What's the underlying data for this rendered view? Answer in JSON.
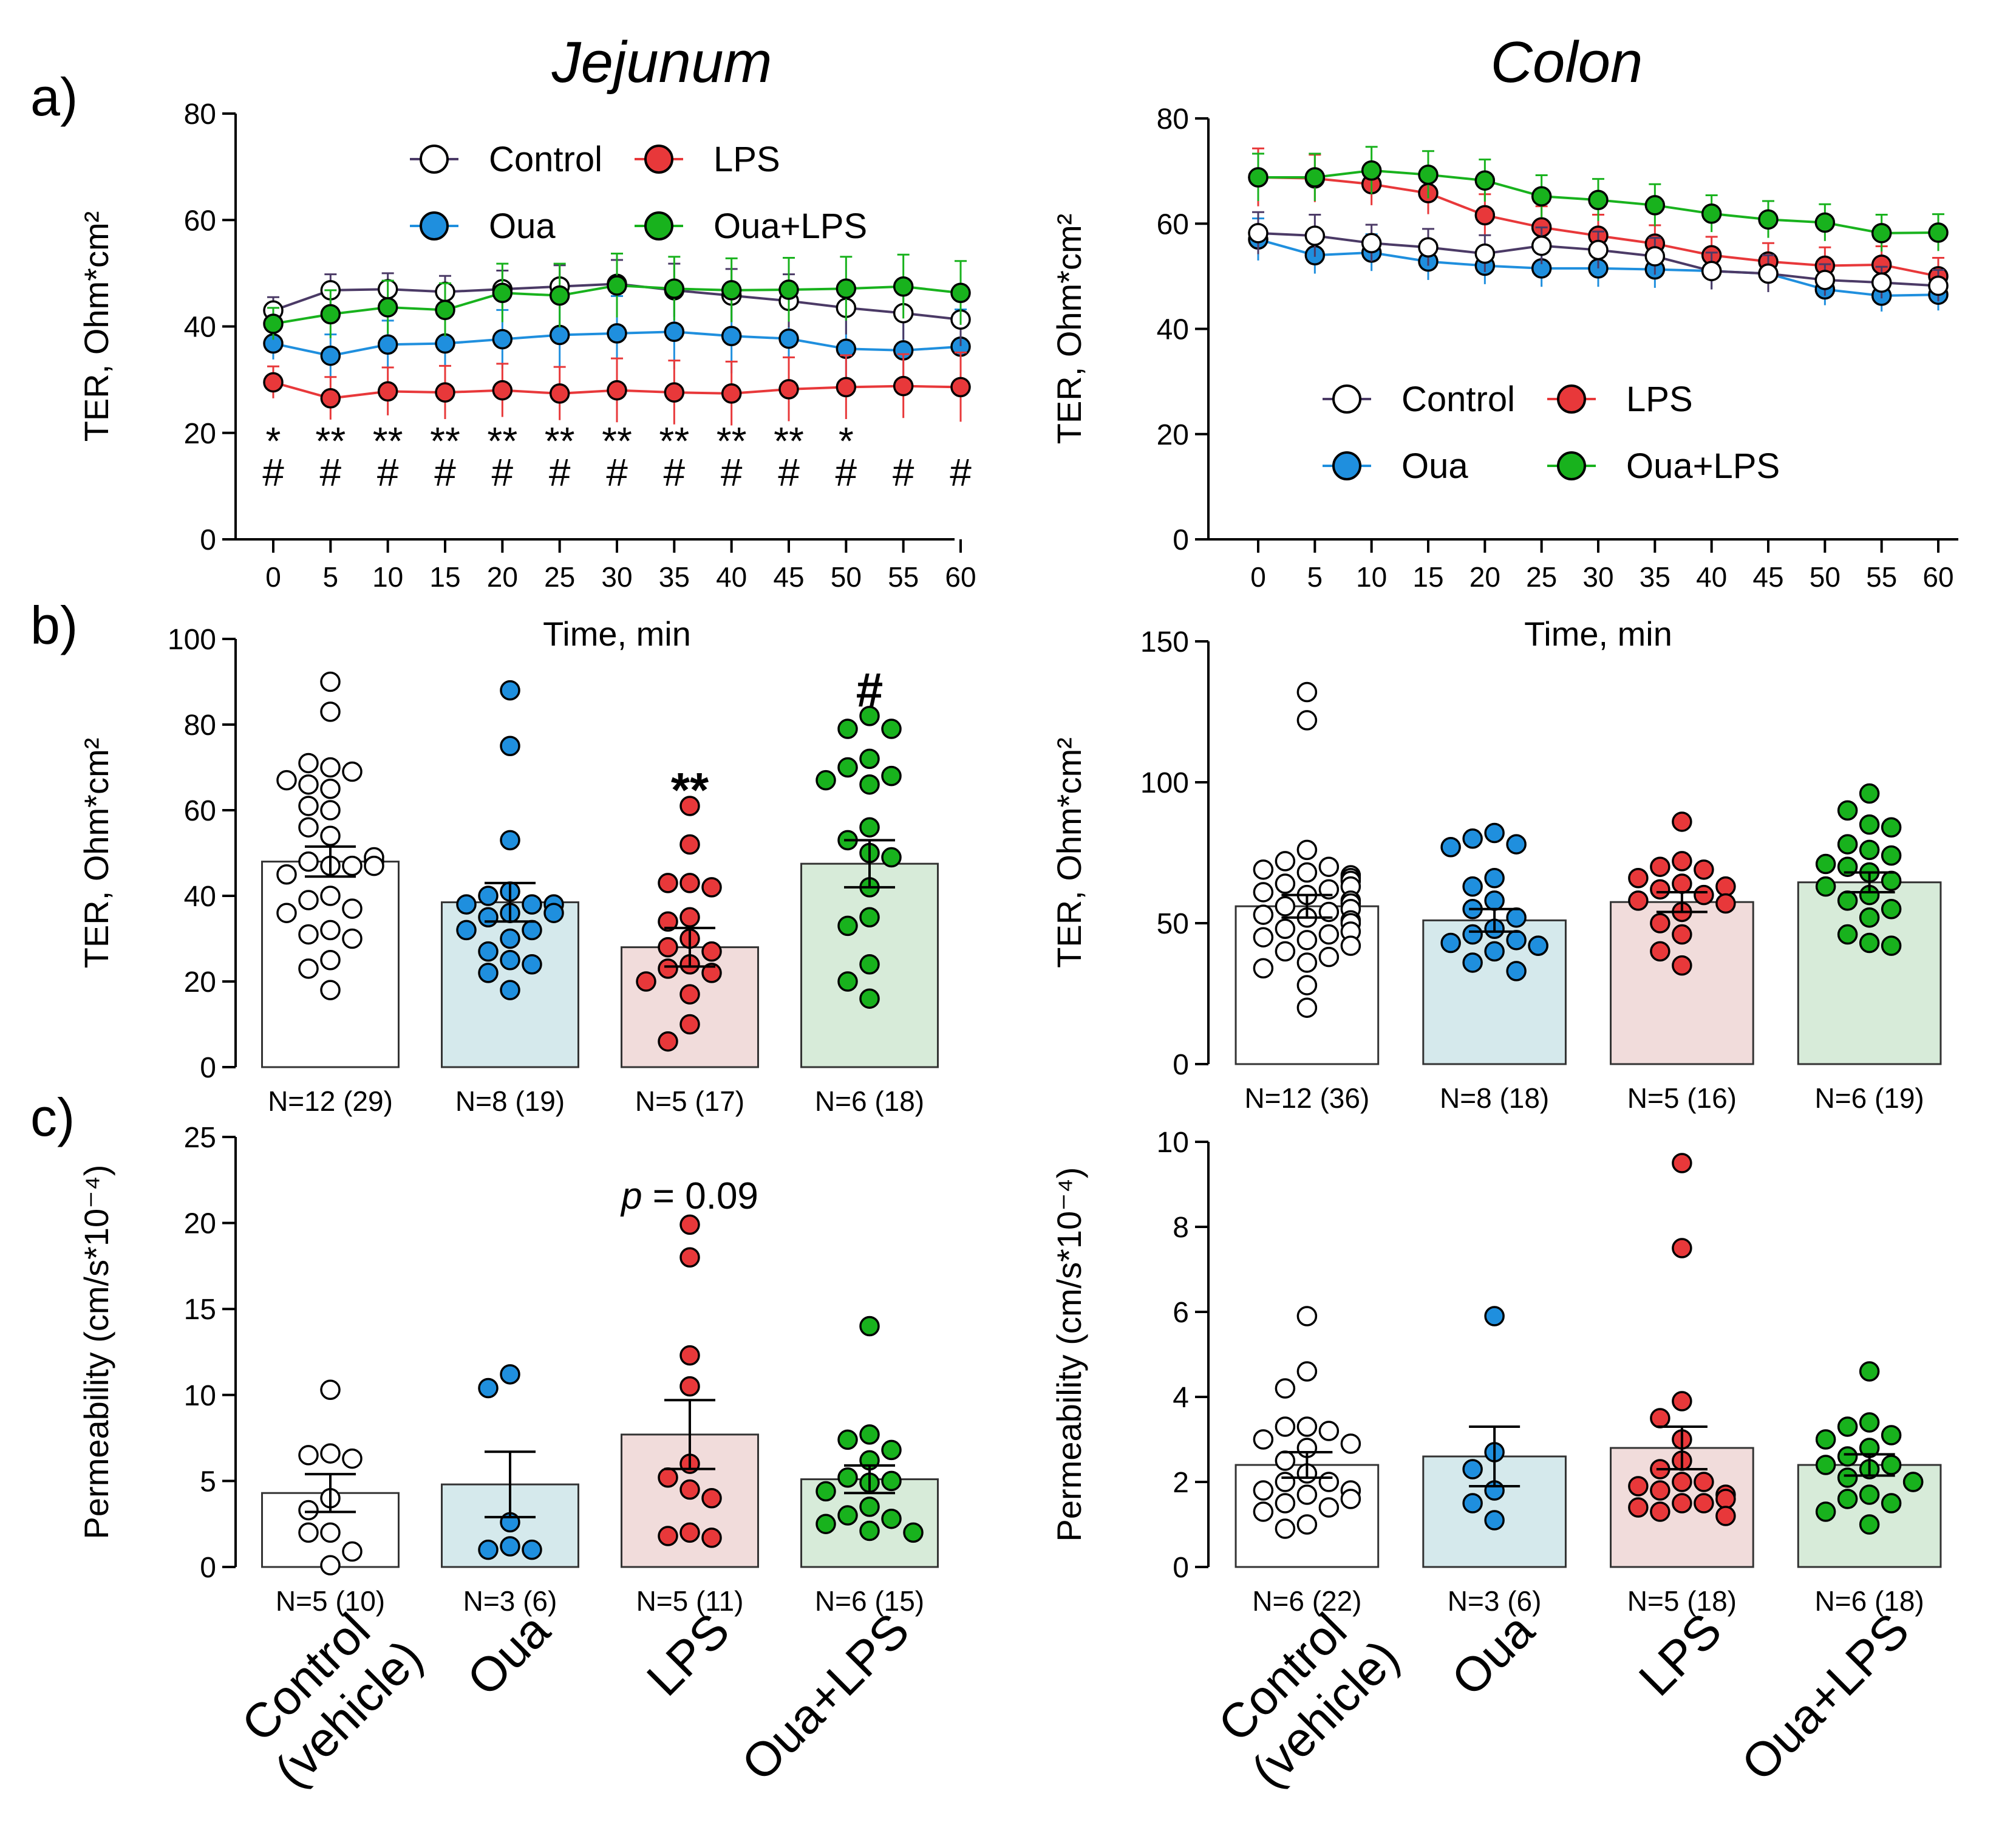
{
  "figure": {
    "titles": {
      "jejunum": "Jejunum",
      "colon": "Colon"
    },
    "panel_labels": [
      "a)",
      "b)",
      "c)"
    ],
    "colors": {
      "control": "#ffffff",
      "oua": "#1f8fde",
      "lps": "#e8383a",
      "oua_lps": "#18b21d",
      "control_line": "#4b3a66",
      "bar_control": "#ffffff",
      "bar_oua": "#d5e9ec",
      "bar_lps": "#f1dcdb",
      "bar_oua_lps": "#d7ebd9"
    }
  },
  "chart_data": [
    {
      "id": "a_jejunum",
      "type": "line",
      "title": "Jejunum",
      "xlabel": "Time, min",
      "ylabel": "TER, Ohm*cm²",
      "xlim": [
        0,
        60
      ],
      "ylim": [
        0,
        80
      ],
      "x": [
        0,
        5,
        10,
        15,
        20,
        25,
        30,
        35,
        40,
        45,
        50,
        55,
        60
      ],
      "xticks": [
        "0",
        "5",
        "10",
        "15",
        "20",
        "25",
        "30",
        "35",
        "40",
        "45",
        "50",
        "55",
        "60"
      ],
      "yticks": [
        "0",
        "20",
        "40",
        "60",
        "80"
      ],
      "legend": [
        "Control",
        "LPS",
        "Oua",
        "Oua+LPS"
      ],
      "series": [
        {
          "name": "Control",
          "values": [
            43,
            46.8,
            47,
            46.5,
            47,
            47.5,
            48,
            46.8,
            45.8,
            44.8,
            43.5,
            42.5,
            41.3
          ],
          "err": [
            2.5,
            3,
            3,
            3,
            3.5,
            4,
            4.5,
            5,
            5,
            5,
            5,
            5,
            5
          ]
        },
        {
          "name": "Oua",
          "values": [
            36.8,
            34.5,
            36.6,
            36.8,
            37.6,
            38.4,
            38.7,
            39,
            38.2,
            37.7,
            35.8,
            35.5,
            36.2
          ],
          "err": [
            3,
            4,
            4.5,
            5,
            5.5,
            6,
            7,
            7,
            7,
            7,
            7,
            7,
            7
          ]
        },
        {
          "name": "LPS",
          "values": [
            29.5,
            26.5,
            27.8,
            27.6,
            28,
            27.4,
            28,
            27.6,
            27.4,
            28.2,
            28.6,
            28.8,
            28.6
          ],
          "err": [
            3,
            4,
            4.5,
            5,
            5,
            5,
            6,
            6,
            6,
            6,
            6,
            6,
            6.5
          ]
        },
        {
          "name": "Oua+LPS",
          "values": [
            40.5,
            42.3,
            43.6,
            43.1,
            46.3,
            45.8,
            47.7,
            47.1,
            46.8,
            46.9,
            47.1,
            47.5,
            46.3
          ],
          "err": [
            3,
            4.5,
            5,
            5,
            5.5,
            6,
            6,
            6,
            6,
            6,
            6,
            6,
            6
          ]
        }
      ],
      "annotations": {
        "stars": [
          "*",
          "**",
          "**",
          "**",
          "**",
          "**",
          "**",
          "**",
          "**",
          "**",
          "*",
          "",
          ""
        ],
        "hashes": [
          "#",
          "#",
          "#",
          "#",
          "#",
          "#",
          "#",
          "#",
          "#",
          "#",
          "#",
          "#",
          "#"
        ]
      }
    },
    {
      "id": "a_colon",
      "type": "line",
      "title": "Colon",
      "xlabel": "Time, min",
      "ylabel": "TER, Ohm*cm²",
      "xlim": [
        0,
        60
      ],
      "ylim": [
        0,
        80
      ],
      "x": [
        0,
        5,
        10,
        15,
        20,
        25,
        30,
        35,
        40,
        45,
        50,
        55,
        60
      ],
      "xticks": [
        "0",
        "5",
        "10",
        "15",
        "20",
        "25",
        "30",
        "35",
        "40",
        "45",
        "50",
        "55",
        "60"
      ],
      "yticks": [
        "0",
        "20",
        "40",
        "60",
        "80"
      ],
      "legend": [
        "Control",
        "LPS",
        "Oua",
        "Oua+LPS"
      ],
      "series": [
        {
          "name": "Control",
          "values": [
            58.2,
            57.7,
            56.3,
            55.5,
            54.3,
            55.8,
            55,
            53.8,
            51,
            50.5,
            49.3,
            48.8,
            48.2
          ],
          "err": [
            4,
            4,
            3.5,
            3.5,
            3.5,
            3.5,
            3.5,
            3.5,
            3.5,
            3.5,
            3,
            3,
            3
          ]
        },
        {
          "name": "Oua",
          "values": [
            57,
            54,
            54.5,
            52.8,
            52,
            51.5,
            51.5,
            51.3,
            51,
            50.5,
            47.5,
            46.3,
            46.5
          ],
          "err": [
            4,
            3.5,
            3.5,
            3.5,
            3.5,
            3.5,
            3.5,
            3.5,
            3.5,
            3.5,
            3,
            3,
            3
          ]
        },
        {
          "name": "LPS",
          "values": [
            68.8,
            68.6,
            67.5,
            65.8,
            61.6,
            59.3,
            57.7,
            56.2,
            54,
            52.8,
            52,
            52.2,
            50
          ],
          "err": [
            5.5,
            4.5,
            4,
            4,
            4,
            4,
            4,
            3.5,
            3.5,
            3.5,
            3.5,
            3.5,
            3.5
          ]
        },
        {
          "name": "Oua+LPS",
          "values": [
            68.8,
            68.8,
            70.1,
            69.3,
            68.2,
            65.2,
            64.5,
            63.5,
            61.9,
            60.8,
            60.2,
            58.2,
            58.3
          ],
          "err": [
            4.5,
            4.5,
            4.5,
            4.5,
            4,
            4,
            4,
            4,
            3.5,
            3.5,
            3.5,
            3.5,
            3.5
          ]
        }
      ]
    },
    {
      "id": "b_jejunum",
      "type": "bar",
      "ylabel": "TER, Ohm*cm²",
      "ylim": [
        0,
        100
      ],
      "yticks": [
        "0",
        "20",
        "40",
        "60",
        "80",
        "100"
      ],
      "categories": [
        "Control (vehicle)",
        "Oua",
        "LPS",
        "Oua+LPS"
      ],
      "n_labels": [
        "N=12 (29)",
        "N=8 (19)",
        "N=5 (17)",
        "N=6 (18)"
      ],
      "values": [
        48,
        38.5,
        28,
        47.5
      ],
      "sem": [
        3.5,
        4.5,
        4.5,
        5.5
      ],
      "sig": [
        "",
        "",
        "**",
        "#"
      ],
      "points": [
        [
          90,
          83,
          70,
          71,
          69,
          65,
          66,
          67,
          61,
          60,
          56,
          54,
          47,
          48,
          47,
          45,
          48,
          49,
          47,
          40,
          39,
          37,
          36,
          32,
          31,
          30,
          25,
          23,
          18
        ],
        [
          88,
          75,
          53,
          41,
          40,
          38,
          38,
          38,
          36,
          35,
          36,
          32,
          32,
          30,
          27,
          25,
          24,
          22,
          18
        ],
        [
          61,
          52,
          43,
          43,
          42,
          35,
          34,
          30,
          28,
          27,
          24,
          23,
          22,
          20,
          17,
          10,
          6
        ],
        [
          82,
          79,
          79,
          72,
          70,
          68,
          66,
          67,
          56,
          53,
          50,
          49,
          42,
          35,
          33,
          24,
          20,
          16
        ]
      ]
    },
    {
      "id": "b_colon",
      "type": "bar",
      "ylabel": "TER, Ohm*cm²",
      "ylim": [
        0,
        150
      ],
      "yticks": [
        "0",
        "50",
        "100",
        "150"
      ],
      "categories": [
        "Control (vehicle)",
        "Oua",
        "LPS",
        "Oua+LPS"
      ],
      "n_labels": [
        "N=12 (36)",
        "N=8 (18)",
        "N=5 (16)",
        "N=6 (19)"
      ],
      "values": [
        56,
        51,
        57.5,
        64.5
      ],
      "sem": [
        4,
        4,
        3.5,
        3.5
      ],
      "sig": [
        "",
        "",
        "",
        ""
      ],
      "points": [
        [
          132,
          122,
          76,
          72,
          70,
          69,
          68,
          67,
          66,
          65,
          64,
          63,
          62,
          61,
          60,
          58,
          57,
          56,
          55,
          54,
          53,
          52,
          51,
          50,
          48,
          47,
          46,
          45,
          44,
          42,
          40,
          38,
          36,
          34,
          28,
          20
        ],
        [
          82,
          80,
          78,
          77,
          66,
          63,
          58,
          55,
          52,
          48,
          46,
          44,
          43,
          42,
          42,
          40,
          36,
          33
        ],
        [
          86,
          72,
          70,
          69,
          66,
          64,
          63,
          62,
          60,
          58,
          57,
          54,
          50,
          46,
          40,
          35
        ],
        [
          96,
          90,
          85,
          84,
          78,
          76,
          74,
          71,
          70,
          68,
          65,
          63,
          60,
          58,
          55,
          52,
          46,
          43,
          42
        ]
      ]
    },
    {
      "id": "c_jejunum",
      "type": "bar",
      "ylabel": "Permeability (cm/s*10⁻⁴)",
      "ylim": [
        0,
        25
      ],
      "yticks": [
        "0",
        "5",
        "10",
        "15",
        "20",
        "25"
      ],
      "categories": [
        "Control (vehicle)",
        "Oua",
        "LPS",
        "Oua+LPS"
      ],
      "n_labels": [
        "N=5 (10)",
        "N=3 (6)",
        "N=5 (11)",
        "N=6 (15)"
      ],
      "values": [
        4.3,
        4.8,
        7.7,
        5.1
      ],
      "sem": [
        1.1,
        1.9,
        2.0,
        0.8
      ],
      "annotation": "p = 0.09",
      "points": [
        [
          10.3,
          6.6,
          6.5,
          6.3,
          4.0,
          3.3,
          2.0,
          2.0,
          0.9,
          0.1
        ],
        [
          11.2,
          10.4,
          2.6,
          1.2,
          1.0,
          1.0
        ],
        [
          19.9,
          18.0,
          12.3,
          10.5,
          6.0,
          5.2,
          4.5,
          4.0,
          2.0,
          1.8,
          1.7
        ],
        [
          14.0,
          7.7,
          7.4,
          6.8,
          6.2,
          5.2,
          5.0,
          4.9,
          4.4,
          3.5,
          3.0,
          2.8,
          2.5,
          2.1,
          2.0
        ]
      ]
    },
    {
      "id": "c_colon",
      "type": "bar",
      "ylabel": "Permeability (cm/s*10⁻⁴)",
      "ylim": [
        0,
        10
      ],
      "yticks": [
        "0",
        "2",
        "4",
        "6",
        "8",
        "10"
      ],
      "categories": [
        "Control (vehicle)",
        "Oua",
        "LPS",
        "Oua+LPS"
      ],
      "n_labels": [
        "N=6 (22)",
        "N=3 (6)",
        "N=5 (18)",
        "N=6 (18)"
      ],
      "values": [
        2.4,
        2.6,
        2.8,
        2.4
      ],
      "sem": [
        0.3,
        0.7,
        0.5,
        0.25
      ],
      "points": [
        [
          5.9,
          4.6,
          4.2,
          3.3,
          3.3,
          3.2,
          3.0,
          2.9,
          2.8,
          2.5,
          2.2,
          2.0,
          2.0,
          1.8,
          1.8,
          1.7,
          1.6,
          1.5,
          1.4,
          1.3,
          1.0,
          0.9
        ],
        [
          5.9,
          2.7,
          2.3,
          1.8,
          1.5,
          1.1
        ],
        [
          9.5,
          7.5,
          3.9,
          3.5,
          3.0,
          2.5,
          2.3,
          2.0,
          2.0,
          1.9,
          1.8,
          1.7,
          1.6,
          1.5,
          1.5,
          1.4,
          1.3,
          1.2
        ],
        [
          4.6,
          3.4,
          3.3,
          3.1,
          3.0,
          2.8,
          2.6,
          2.4,
          2.4,
          2.3,
          2.1,
          2.0,
          2.0,
          1.7,
          1.6,
          1.5,
          1.3,
          1.0
        ]
      ]
    }
  ],
  "category_labels": {
    "control": [
      "Control",
      "(vehicle)"
    ],
    "oua": "Oua",
    "lps": "LPS",
    "oua_lps": "Oua+LPS"
  }
}
